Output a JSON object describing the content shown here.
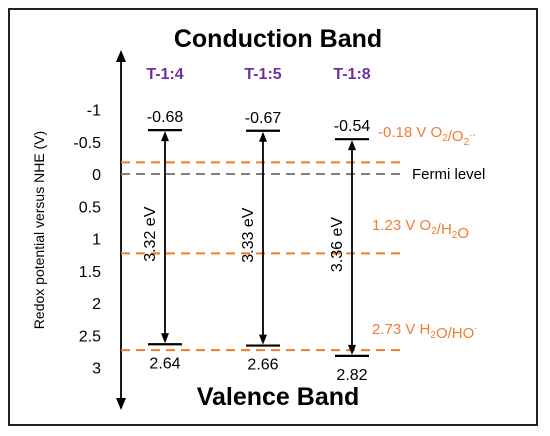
{
  "title_top": "Conduction Band",
  "title_bottom": "Valence Band",
  "y_axis_label": "Redox potential versus NHE (V)",
  "y_ticks": [
    {
      "label": "-1",
      "value": -1
    },
    {
      "label": "-0.5",
      "value": -0.5
    },
    {
      "label": "0",
      "value": 0
    },
    {
      "label": "0.5",
      "value": 0.5
    },
    {
      "label": "1",
      "value": 1
    },
    {
      "label": "1.5",
      "value": 1.5
    },
    {
      "label": "2",
      "value": 2
    },
    {
      "label": "2.5",
      "value": 2.5
    },
    {
      "label": "3",
      "value": 3
    }
  ],
  "samples": [
    {
      "name": "T-1:4",
      "cb": -0.68,
      "vb": 2.64,
      "cb_label": "-0.68",
      "vb_label": "2.64",
      "gap_label": "3.32 eV"
    },
    {
      "name": "T-1:5",
      "cb": -0.67,
      "vb": 2.66,
      "cb_label": "-0.67",
      "vb_label": "2.66",
      "gap_label": "3.33 eV"
    },
    {
      "name": "T-1:8",
      "cb": -0.54,
      "vb": 2.82,
      "cb_label": "-0.54",
      "vb_label": "2.82",
      "gap_label": "3.36 eV"
    }
  ],
  "reference_lines": [
    {
      "value": -0.18,
      "color": "#ED7D31",
      "label_prefix": "-0.18 V O",
      "label_parts": [
        [
          "O",
          "2"
        ],
        [
          "/O",
          "2"
        ]
      ],
      "label_sup": "·-"
    },
    {
      "value": 0,
      "color": "#808080",
      "label_text": "Fermi level"
    },
    {
      "value": 1.23,
      "color": "#ED7D31",
      "label_prefix": "1.23 V O",
      "label_parts": [
        [
          "O",
          "2"
        ],
        [
          "/H",
          "2"
        ],
        [
          "O",
          ""
        ]
      ]
    },
    {
      "value": 2.73,
      "color": "#ED7D31",
      "label_prefix": "2.73 V H",
      "label_parts": [
        [
          "H",
          "2"
        ],
        [
          "O/HO",
          ""
        ]
      ],
      "label_sup": "·"
    }
  ],
  "colors": {
    "sample_name": "#7030A0",
    "orange": "#ED7D31",
    "gray": "#808080",
    "black": "#000000"
  }
}
